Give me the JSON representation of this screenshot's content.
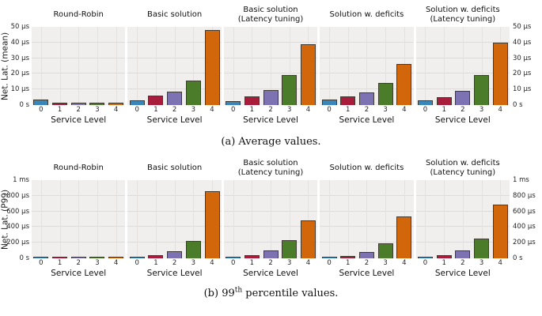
{
  "palette": {
    "bar_colors": [
      "#3a86b8",
      "#a71d3b",
      "#7d72b2",
      "#4a7c29",
      "#d2660a"
    ],
    "bar_edge": "#3f3b33",
    "plot_bg": "#f0efee",
    "grid": "#dddcda"
  },
  "captions": {
    "a": "(a) Average values.",
    "b_prefix": "(b) 99",
    "b_sup": "th",
    "b_suffix": " percentile values."
  },
  "chart_data": [
    {
      "type": "bar",
      "ylabel": "Net. Lat. (mean)",
      "xlabel": "Service Level",
      "unit": "µs",
      "categories": [
        "0",
        "1",
        "2",
        "3",
        "4"
      ],
      "ylim": [
        0,
        50
      ],
      "grid": true,
      "yticks": [
        {
          "value": 0,
          "label": "0 s"
        },
        {
          "value": 10,
          "label": "10 µs"
        },
        {
          "value": 20,
          "label": "20 µs"
        },
        {
          "value": 30,
          "label": "30 µs"
        },
        {
          "value": 40,
          "label": "40 µs"
        },
        {
          "value": 50,
          "label": "50 µs"
        }
      ],
      "panels": [
        {
          "title_lines": [
            "Round-Robin"
          ],
          "values": [
            3.5,
            1.6,
            1.4,
            1.4,
            1.4
          ]
        },
        {
          "title_lines": [
            "Basic solution"
          ],
          "values": [
            3.0,
            6.0,
            8.5,
            15.5,
            48.0
          ]
        },
        {
          "title_lines": [
            "Basic solution",
            "(Latency tuning)"
          ],
          "values": [
            2.8,
            5.5,
            9.5,
            19.0,
            39.0
          ]
        },
        {
          "title_lines": [
            "Solution w. deficits"
          ],
          "values": [
            3.5,
            5.5,
            8.3,
            14.0,
            26.5
          ]
        },
        {
          "title_lines": [
            "Solution w. deficits",
            "(Latency tuning)"
          ],
          "values": [
            3.0,
            5.0,
            9.0,
            19.0,
            40.0
          ]
        }
      ]
    },
    {
      "type": "bar",
      "ylabel": "Net. Lat. (P99)",
      "xlabel": "Service Level",
      "unit": "µs",
      "categories": [
        "0",
        "1",
        "2",
        "3",
        "4"
      ],
      "ylim": [
        0,
        1000
      ],
      "grid": true,
      "yticks": [
        {
          "value": 0,
          "label": "0 s"
        },
        {
          "value": 200,
          "label": "200 µs"
        },
        {
          "value": 400,
          "label": "400 µs"
        },
        {
          "value": 600,
          "label": "600 µs"
        },
        {
          "value": 800,
          "label": "800 µs"
        },
        {
          "value": 1000,
          "label": "1 ms"
        }
      ],
      "panels": [
        {
          "title_lines": [
            "Round-Robin"
          ],
          "values": [
            15,
            6,
            4,
            4,
            4
          ]
        },
        {
          "title_lines": [
            "Basic solution"
          ],
          "values": [
            20,
            45,
            95,
            220,
            860
          ]
        },
        {
          "title_lines": [
            "Basic solution",
            "(Latency tuning)"
          ],
          "values": [
            17,
            41,
            100,
            230,
            490
          ]
        },
        {
          "title_lines": [
            "Solution w. deficits"
          ],
          "values": [
            14,
            34,
            86,
            190,
            540
          ]
        },
        {
          "title_lines": [
            "Solution w. deficits",
            "(Latency tuning)"
          ],
          "values": [
            17,
            41,
            100,
            255,
            690
          ]
        }
      ]
    }
  ]
}
